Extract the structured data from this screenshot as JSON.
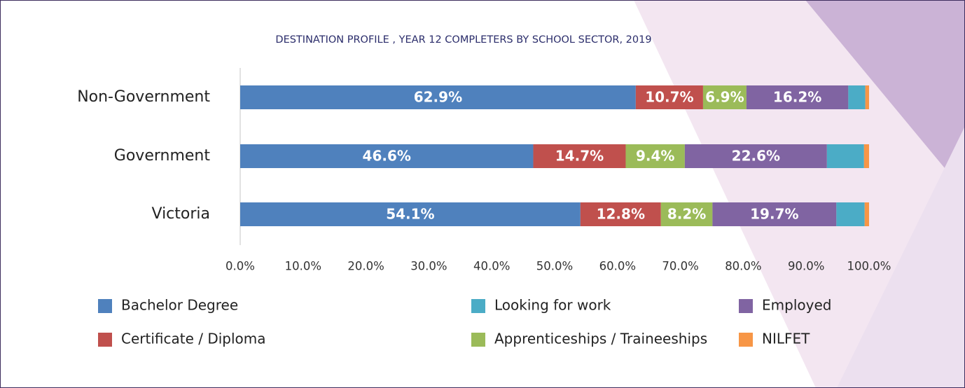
{
  "chart_data": {
    "type": "stacked-bar-horizontal",
    "title": "DESTINATION PROFILE , YEAR 12 COMPLETERS BY SCHOOL SECTOR, 2019",
    "categories": [
      "Non-Government",
      "Government",
      "Victoria"
    ],
    "series": [
      {
        "name": "Bachelor Degree",
        "color": "#4f81bd",
        "values": [
          62.9,
          46.6,
          54.1
        ],
        "value_labels": [
          "62.9%",
          "46.6%",
          "54.1%"
        ]
      },
      {
        "name": "Certificate / Diploma",
        "color": "#c0504d",
        "values": [
          10.7,
          14.7,
          12.8
        ],
        "value_labels": [
          "10.7%",
          "14.7%",
          "12.8%"
        ]
      },
      {
        "name": "Apprenticeships / Traineeships",
        "color": "#9bbb59",
        "values": [
          6.9,
          9.4,
          8.2
        ],
        "value_labels": [
          "6.9%",
          "9.4%",
          "8.2%"
        ]
      },
      {
        "name": "Employed",
        "color": "#8064a2",
        "values": [
          16.2,
          22.6,
          19.7
        ],
        "value_labels": [
          "16.2%",
          "22.6%",
          "19.7%"
        ]
      },
      {
        "name": "Looking for work",
        "color": "#4bacc6",
        "values": [
          2.7,
          5.9,
          4.5
        ]
      },
      {
        "name": "NILFET",
        "color": "#f79646",
        "values": [
          0.6,
          0.8,
          0.7
        ]
      }
    ],
    "xlim": [
      0,
      100
    ],
    "xticks": [
      {
        "value": 0,
        "label": "0.0%"
      },
      {
        "value": 10,
        "label": "10.0%"
      },
      {
        "value": 20,
        "label": "20.0%"
      },
      {
        "value": 30,
        "label": "30.0%"
      },
      {
        "value": 40,
        "label": "40.0%"
      },
      {
        "value": 50,
        "label": "50.0%"
      },
      {
        "value": 60,
        "label": "60.0%"
      },
      {
        "value": 70,
        "label": "70.0%"
      },
      {
        "value": 80,
        "label": "80.0%"
      },
      {
        "value": 90,
        "label": "90.0%"
      },
      {
        "value": 100,
        "label": "100.0%"
      }
    ],
    "legend": "bottom"
  }
}
